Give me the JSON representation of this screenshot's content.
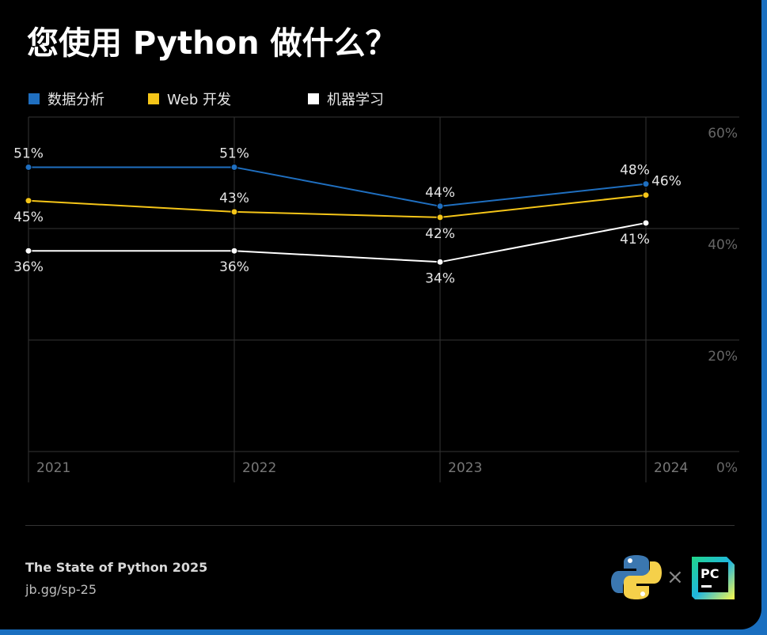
{
  "title": "您使用 Python 做什么？",
  "footer": {
    "title": "The State of Python 2025",
    "link": "jb.gg/sp-25",
    "separator": "×",
    "logos": [
      "python-logo",
      "pycharm-logo"
    ],
    "pycharm_text": "PC"
  },
  "chart_data": {
    "type": "line",
    "categories": [
      "2021",
      "2022",
      "2023",
      "2024"
    ],
    "ylim": [
      0,
      60
    ],
    "yticks": [
      0,
      20,
      40,
      60
    ],
    "ytick_labels": [
      "0%",
      "20%",
      "40%",
      "60%"
    ],
    "grid": true,
    "legend_placement": "top",
    "series": [
      {
        "name": "数据分析",
        "color": "#1f6fc0",
        "values": [
          51,
          51,
          44,
          48
        ],
        "labels": [
          "51%",
          "51%",
          "44%",
          "48%"
        ]
      },
      {
        "name": "Web 开发",
        "color": "#f5c518",
        "values": [
          45,
          43,
          42,
          46
        ],
        "labels": [
          "45%",
          "43%",
          "42%",
          "46%"
        ]
      },
      {
        "name": "机器学习",
        "color": "#ffffff",
        "values": [
          36,
          36,
          34,
          41
        ],
        "labels": [
          "36%",
          "36%",
          "34%",
          "41%"
        ]
      }
    ]
  }
}
